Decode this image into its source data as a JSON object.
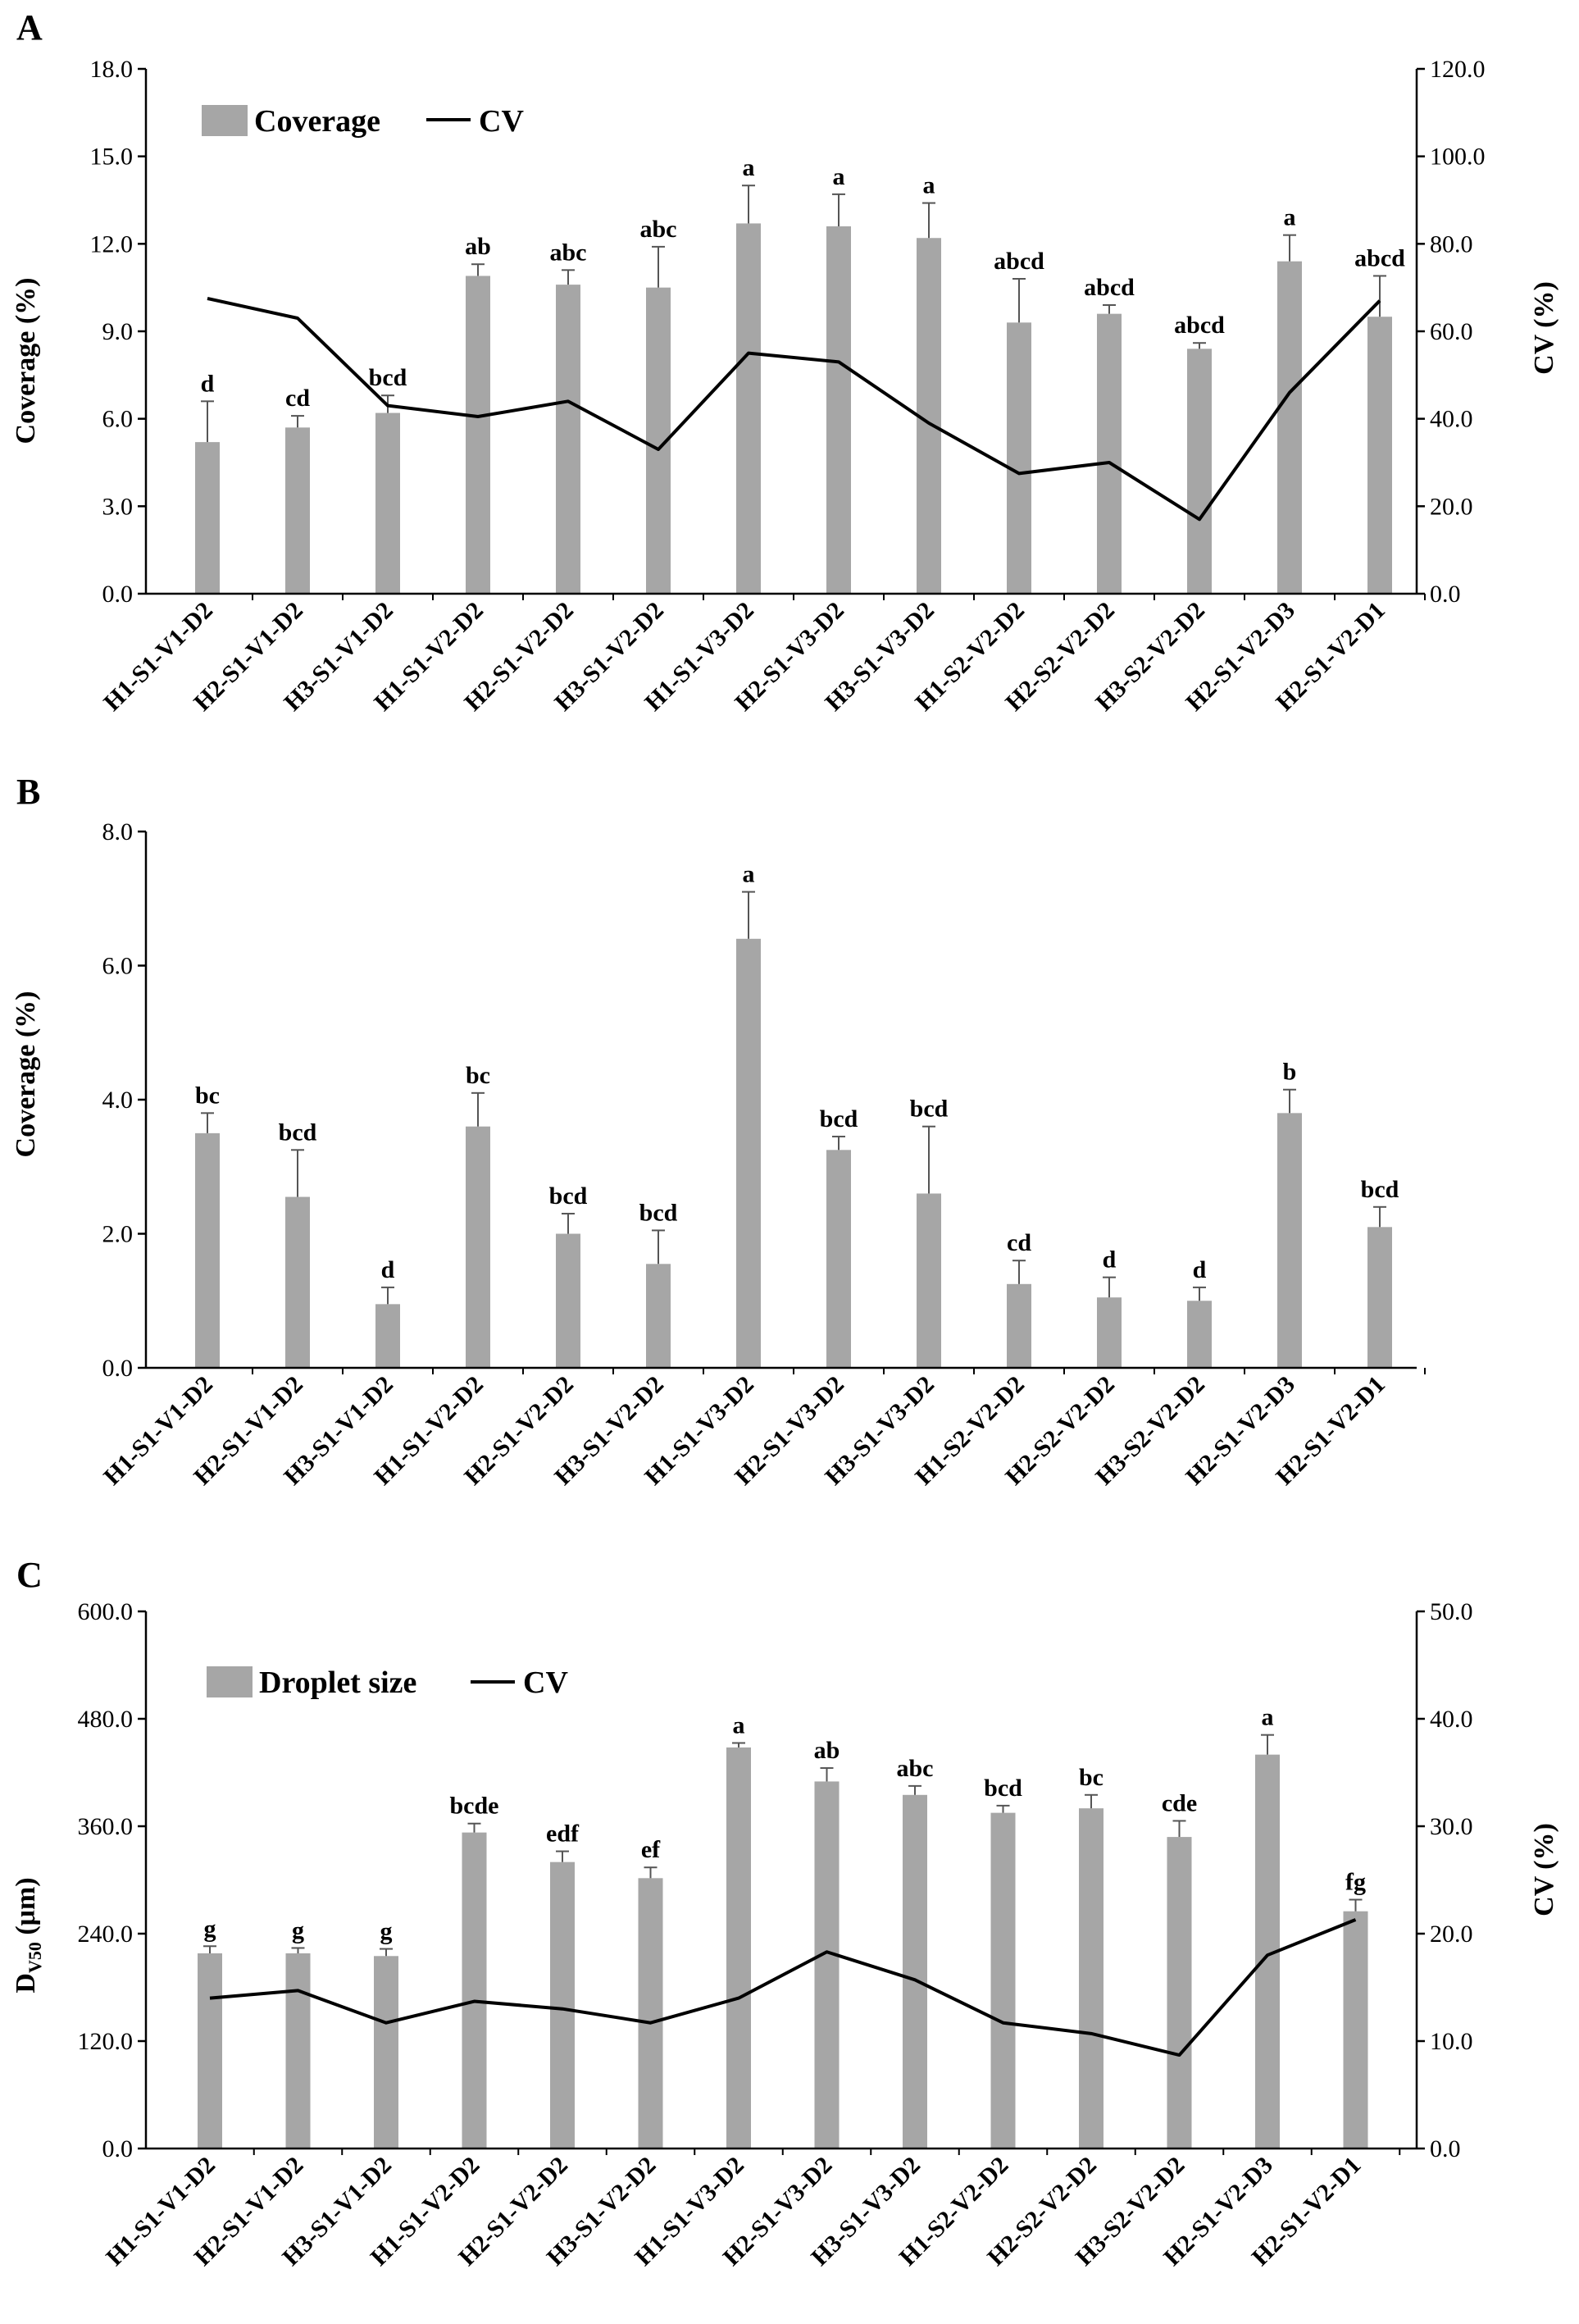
{
  "figure": {
    "panels": [
      {
        "letter": "A",
        "left_axis_label": "Coverage (%)",
        "right_axis_label": "CV (%)",
        "legend": {
          "bar": "Coverage",
          "line": "CV"
        },
        "colors": {
          "bar": "#a6a6a6",
          "line": "#000000"
        }
      },
      {
        "letter": "B",
        "left_axis_label": "Coverage (%)",
        "colors": {
          "bar": "#a6a6a6"
        }
      },
      {
        "letter": "C",
        "left_axis_label_main": "D",
        "left_axis_label_sub": "V50",
        "left_axis_label_unit": " (μm)",
        "right_axis_label": "CV (%)",
        "legend": {
          "bar": "Droplet size",
          "line": "CV"
        },
        "colors": {
          "bar": "#a6a6a6",
          "line": "#000000"
        }
      }
    ]
  },
  "chart_data": [
    {
      "type": "bar",
      "panel": "A",
      "categories": [
        "H1-S1-V1-D2",
        "H2-S1-V1-D2",
        "H3-S1-V1-D2",
        "H1-S1-V2-D2",
        "H2-S1-V2-D2",
        "H3-S1-V2-D2",
        "H1-S1-V3-D2",
        "H2-S1-V3-D2",
        "H3-S1-V3-D2",
        "H1-S2-V2-D2",
        "H2-S2-V2-D2",
        "H3-S2-V2-D2",
        "H2-S1-V2-D3",
        "H2-S1-V2-D1"
      ],
      "series": [
        {
          "name": "Coverage",
          "axis": "left",
          "type": "bar",
          "values": [
            5.2,
            5.7,
            6.2,
            10.9,
            10.6,
            10.5,
            12.7,
            12.6,
            12.2,
            9.3,
            9.6,
            8.4,
            11.4,
            9.5
          ],
          "errors": [
            1.4,
            0.4,
            0.6,
            0.4,
            0.5,
            1.4,
            1.3,
            1.1,
            1.2,
            1.5,
            0.3,
            0.2,
            0.9,
            1.4
          ],
          "labels": [
            "d",
            "cd",
            "bcd",
            "ab",
            "abc",
            "abc",
            "a",
            "a",
            "a",
            "abcd",
            "abcd",
            "abcd",
            "a",
            "abcd"
          ]
        },
        {
          "name": "CV",
          "axis": "right",
          "type": "line",
          "values": [
            67.5,
            63.0,
            43.0,
            40.5,
            44.0,
            33.0,
            55.0,
            53.0,
            39.0,
            27.5,
            30.0,
            17.0,
            46.0,
            67.0
          ]
        }
      ],
      "ylabel": "Coverage (%)",
      "y2label": "CV (%)",
      "ylim": [
        0,
        18
      ],
      "y2lim": [
        0,
        120
      ],
      "yticks": [
        "0.0",
        "3.0",
        "6.0",
        "9.0",
        "12.0",
        "15.0",
        "18.0"
      ],
      "y2ticks": [
        "0.0",
        "20.0",
        "40.0",
        "60.0",
        "80.0",
        "100.0",
        "120.0"
      ],
      "legend": "top-left"
    },
    {
      "type": "bar",
      "panel": "B",
      "categories": [
        "H1-S1-V1-D2",
        "H2-S1-V1-D2",
        "H3-S1-V1-D2",
        "H1-S1-V2-D2",
        "H2-S1-V2-D2",
        "H3-S1-V2-D2",
        "H1-S1-V3-D2",
        "H2-S1-V3-D2",
        "H3-S1-V3-D2",
        "H1-S2-V2-D2",
        "H2-S2-V2-D2",
        "H3-S2-V2-D2",
        "H2-S1-V2-D3",
        "H2-S1-V2-D1"
      ],
      "series": [
        {
          "axis": "left",
          "type": "bar",
          "values": [
            3.5,
            2.55,
            0.95,
            3.6,
            2.0,
            1.55,
            6.4,
            3.25,
            2.6,
            1.25,
            1.05,
            1.0,
            3.8,
            2.1
          ],
          "errors": [
            0.3,
            0.7,
            0.25,
            0.5,
            0.3,
            0.5,
            0.7,
            0.2,
            1.0,
            0.35,
            0.3,
            0.2,
            0.35,
            0.3
          ],
          "labels": [
            "bc",
            "bcd",
            "d",
            "bc",
            "bcd",
            "bcd",
            "a",
            "bcd",
            "bcd",
            "cd",
            "d",
            "d",
            "b",
            "bcd"
          ]
        }
      ],
      "ylabel": "Coverage (%)",
      "ylim": [
        0,
        8
      ],
      "yticks": [
        "0.0",
        "2.0",
        "4.0",
        "6.0",
        "8.0"
      ]
    },
    {
      "type": "bar",
      "panel": "C",
      "categories": [
        "H1-S1-V1-D2",
        "H2-S1-V1-D2",
        "H3-S1-V1-D2",
        "H1-S1-V2-D2",
        "H2-S1-V2-D2",
        "H3-S1-V2-D2",
        "H1-S1-V3-D2",
        "H2-S1-V3-D2",
        "H3-S1-V3-D2",
        "H1-S2-V2-D2",
        "H2-S2-V2-D2",
        "H3-S2-V2-D2",
        "H2-S1-V2-D3",
        "H2-S1-V2-D1"
      ],
      "series": [
        {
          "name": "Droplet size",
          "axis": "left",
          "type": "bar",
          "values": [
            218,
            218,
            215,
            353,
            320,
            302,
            448,
            410,
            395,
            375,
            380,
            348,
            440,
            265
          ],
          "errors": [
            8,
            6,
            8,
            10,
            12,
            12,
            5,
            15,
            10,
            8,
            15,
            18,
            22,
            13
          ],
          "labels": [
            "g",
            "g",
            "g",
            "bcde",
            "edf",
            "ef",
            "a",
            "ab",
            "abc",
            "bcd",
            "bc",
            "cde",
            "a",
            "fg"
          ]
        },
        {
          "name": "CV",
          "axis": "right",
          "type": "line",
          "values": [
            14.0,
            14.7,
            11.7,
            13.7,
            13.0,
            11.7,
            14.0,
            18.3,
            15.7,
            11.7,
            10.7,
            8.7,
            18.0,
            21.3
          ]
        }
      ],
      "ylabel": "D V50 (μm)",
      "y2label": "CV (%)",
      "ylim": [
        0,
        600
      ],
      "y2lim": [
        0,
        50
      ],
      "yticks": [
        "0.0",
        "120.0",
        "240.0",
        "360.0",
        "480.0",
        "600.0"
      ],
      "y2ticks": [
        "0.0",
        "10.0",
        "20.0",
        "30.0",
        "40.0",
        "50.0"
      ],
      "legend": "top-left"
    }
  ]
}
